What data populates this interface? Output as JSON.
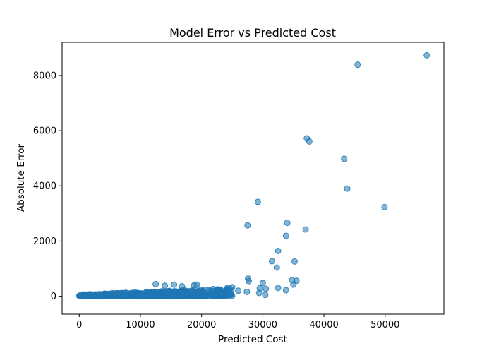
{
  "chart_data": {
    "type": "scatter",
    "title": "Model Error vs Predicted Cost",
    "xlabel": "Predicted Cost",
    "ylabel": "Absolute Error",
    "xlim": [
      -2800,
      59600
    ],
    "ylim": [
      -650,
      9200
    ],
    "xticks": [
      0,
      10000,
      20000,
      30000,
      40000,
      50000
    ],
    "yticks": [
      0,
      2000,
      4000,
      6000,
      8000
    ],
    "xtick_labels": [
      "0",
      "10000",
      "20000",
      "30000",
      "40000",
      "50000"
    ],
    "ytick_labels": [
      "0",
      "2000",
      "4000",
      "6000",
      "8000"
    ],
    "grid": false,
    "legend": "none",
    "color": "#1f77b4",
    "dense_cluster": {
      "x_range": [
        0,
        25000
      ],
      "y_range": [
        0,
        450
      ],
      "count": 700
    },
    "points": [
      [
        56800,
        8730
      ],
      [
        45500,
        8390
      ],
      [
        37200,
        5720
      ],
      [
        37600,
        5610
      ],
      [
        43300,
        4980
      ],
      [
        43800,
        3900
      ],
      [
        49900,
        3230
      ],
      [
        29200,
        3420
      ],
      [
        27500,
        2570
      ],
      [
        34000,
        2660
      ],
      [
        33800,
        2190
      ],
      [
        37000,
        2420
      ],
      [
        32500,
        1640
      ],
      [
        31500,
        1270
      ],
      [
        35200,
        1260
      ],
      [
        32300,
        1040
      ],
      [
        27600,
        640
      ],
      [
        27700,
        550
      ],
      [
        30000,
        480
      ],
      [
        29500,
        290
      ],
      [
        30500,
        270
      ],
      [
        32500,
        300
      ],
      [
        34800,
        580
      ],
      [
        35500,
        560
      ],
      [
        35000,
        420
      ],
      [
        33800,
        220
      ],
      [
        27400,
        160
      ],
      [
        29400,
        120
      ],
      [
        30400,
        50
      ],
      [
        25000,
        330
      ],
      [
        26000,
        200
      ],
      [
        24200,
        300
      ],
      [
        12500,
        440
      ],
      [
        15500,
        420
      ],
      [
        18800,
        400
      ],
      [
        19200,
        420
      ],
      [
        16800,
        360
      ],
      [
        14000,
        380
      ]
    ]
  }
}
